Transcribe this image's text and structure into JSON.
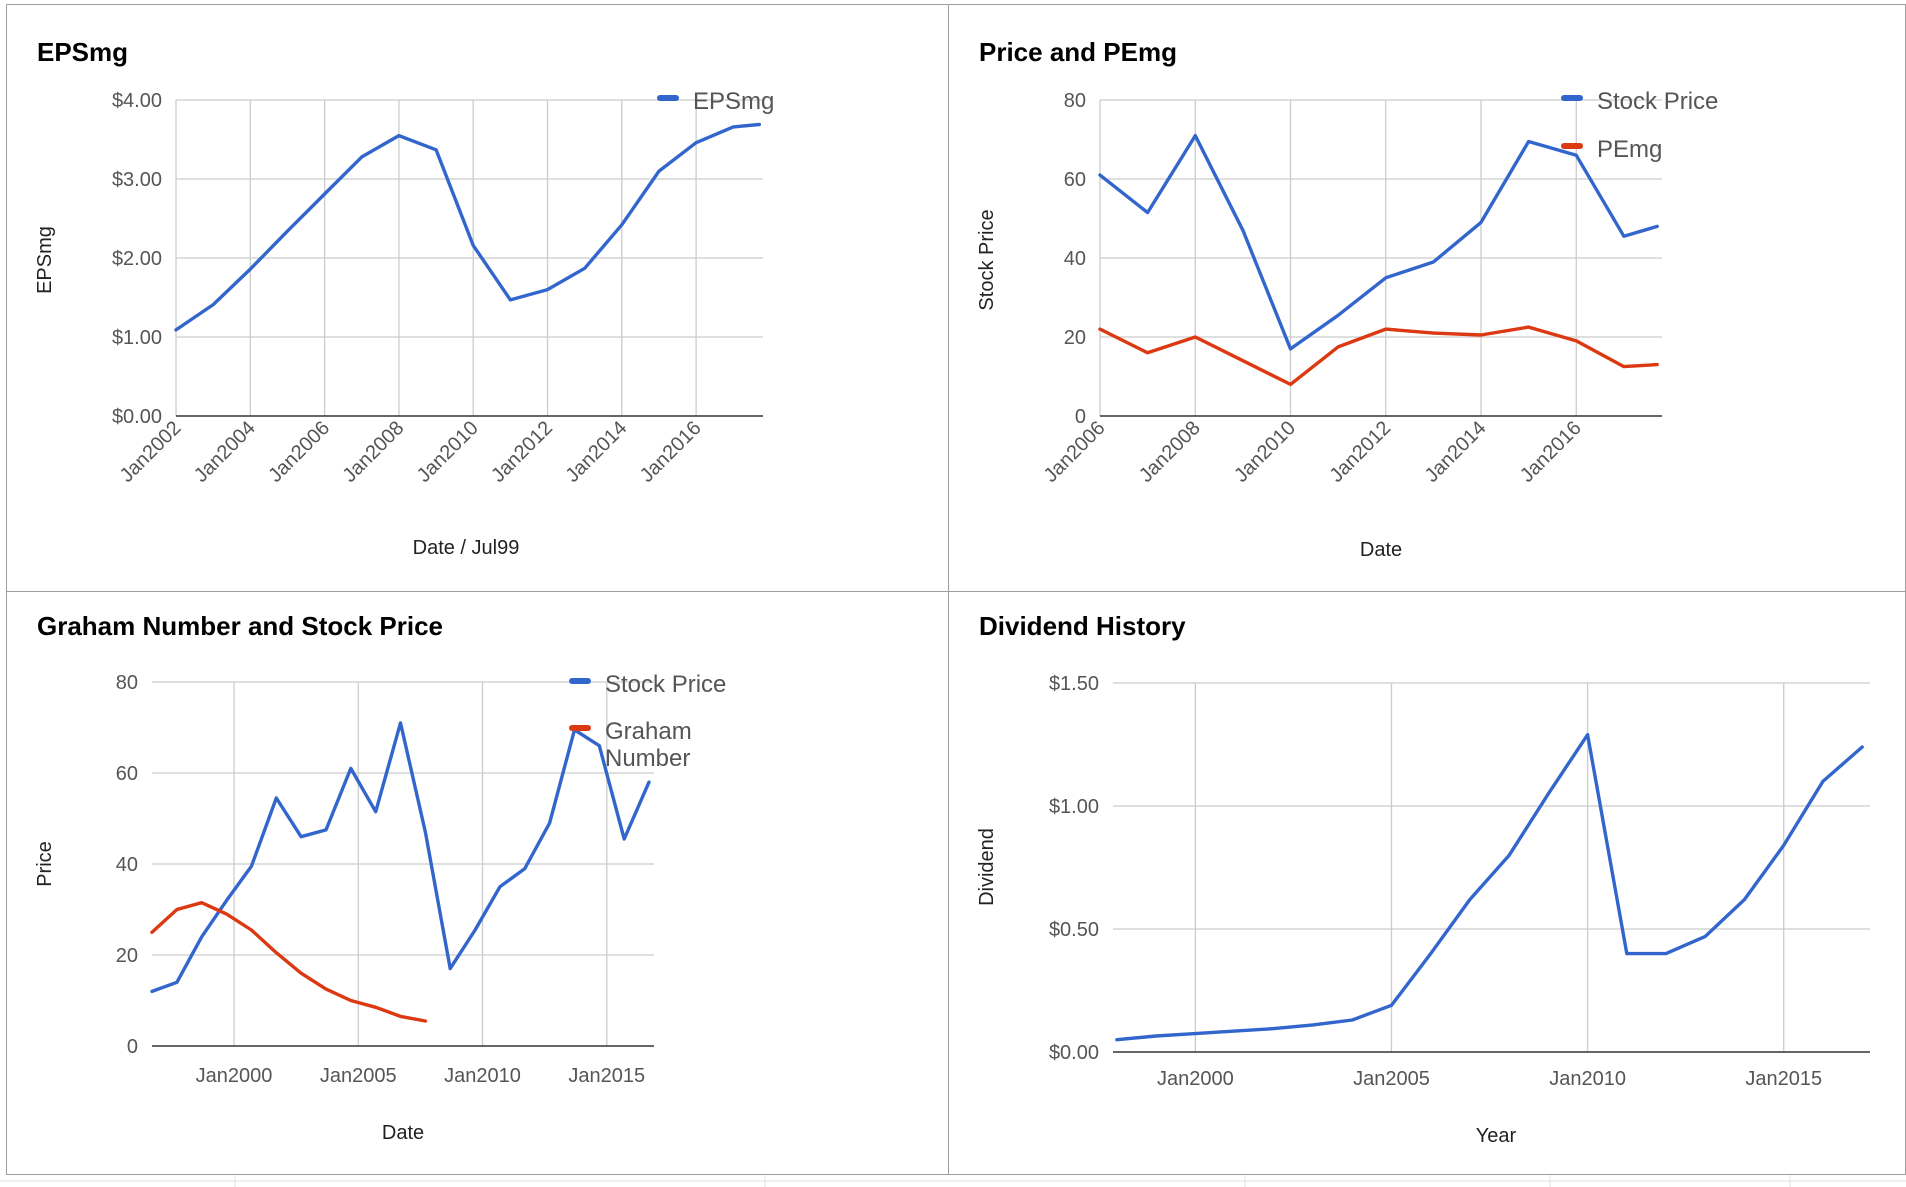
{
  "colors": {
    "blue": "#3366cc",
    "red": "#dc3912",
    "grid": "#cccccc",
    "axis": "#333333"
  },
  "chart_data": [
    {
      "type": "line",
      "title": "EPSmg",
      "xlabel": "Date / Jul99",
      "ylabel": "EPSmg",
      "x_tick_labels": [
        "Jan2002",
        "Jan2004",
        "Jan2006",
        "Jan2008",
        "Jan2010",
        "Jan2012",
        "Jan2014",
        "Jan2016"
      ],
      "y_tick_labels": [
        "$0.00",
        "$1.00",
        "$2.00",
        "$3.00",
        "$4.00"
      ],
      "ylim": [
        0,
        4
      ],
      "xlim": [
        2002,
        2017.8
      ],
      "grid": true,
      "legend_position": "right",
      "series": [
        {
          "name": "EPSmg",
          "color": "#3366cc",
          "x": [
            2002,
            2003,
            2004,
            2005,
            2006,
            2007,
            2008,
            2009,
            2010,
            2011,
            2012,
            2013,
            2014,
            2015,
            2016,
            2017,
            2017.7
          ],
          "y": [
            1.09,
            1.41,
            1.86,
            2.34,
            2.81,
            3.28,
            3.55,
            3.37,
            2.16,
            1.47,
            1.6,
            1.87,
            2.42,
            3.1,
            3.46,
            3.66,
            3.69
          ]
        }
      ]
    },
    {
      "type": "line",
      "title": "Price and PEmg",
      "xlabel": "Date",
      "ylabel": "Stock Price",
      "x_tick_labels": [
        "Jan2006",
        "Jan2008",
        "Jan2010",
        "Jan2012",
        "Jan2014",
        "Jan2016"
      ],
      "y_tick_labels": [
        "0",
        "20",
        "40",
        "60",
        "80"
      ],
      "ylim": [
        0,
        80
      ],
      "xlim": [
        2006,
        2017.8
      ],
      "grid": true,
      "legend_position": "right",
      "series": [
        {
          "name": "Stock Price",
          "color": "#3366cc",
          "x": [
            2006,
            2007,
            2008,
            2009,
            2010,
            2011,
            2012,
            2013,
            2014,
            2015,
            2016,
            2017,
            2017.7
          ],
          "y": [
            61,
            51.5,
            71,
            47,
            17,
            25.5,
            35,
            39,
            49,
            69.5,
            66,
            45.5,
            48
          ]
        },
        {
          "name": "PEmg",
          "color": "#dc3912",
          "x": [
            2006,
            2007,
            2008,
            2009,
            2010,
            2011,
            2012,
            2013,
            2014,
            2015,
            2016,
            2017,
            2017.7
          ],
          "y": [
            22,
            16,
            20,
            14,
            8,
            17.5,
            22,
            21,
            20.5,
            22.5,
            19,
            12.5,
            13
          ]
        }
      ]
    },
    {
      "type": "line",
      "title": "Graham Number and Stock Price",
      "xlabel": "Date",
      "ylabel": "Price",
      "x_tick_labels": [
        "Jan2000",
        "Jan2005",
        "Jan2010",
        "Jan2015"
      ],
      "y_tick_labels": [
        "0",
        "20",
        "40",
        "60",
        "80"
      ],
      "ylim": [
        0,
        80
      ],
      "xlim": [
        1996.7,
        2016.9
      ],
      "grid": true,
      "legend_position": "right",
      "series": [
        {
          "name": "Stock Price",
          "color": "#3366cc",
          "x": [
            1996.7,
            1997.7,
            1998.7,
            1999.7,
            2000.7,
            2001.7,
            2002.7,
            2003.7,
            2004.7,
            2005.7,
            2006.7,
            2007.7,
            2008.7,
            2009.7,
            2010.7,
            2011.7,
            2012.7,
            2013.7,
            2014.7,
            2015.7,
            2016.7
          ],
          "y": [
            12,
            14,
            24,
            32,
            39.5,
            54.5,
            46,
            47.5,
            61,
            51.5,
            71,
            47,
            17,
            25.5,
            35,
            39,
            49,
            69.5,
            66,
            45.5,
            58
          ]
        },
        {
          "name": "Graham Number",
          "color": "#dc3912",
          "x": [
            1996.7,
            1997.7,
            1998.7,
            1999.7,
            2000.7,
            2001.7,
            2002.7,
            2003.7,
            2004.7,
            2005.7,
            2006.7,
            2007.7
          ],
          "y": [
            25,
            30,
            31.5,
            29,
            25.5,
            20.5,
            16,
            12.5,
            10,
            8.5,
            6.5,
            5.5
          ]
        }
      ]
    },
    {
      "type": "line",
      "title": "Dividend History",
      "xlabel": "Year",
      "ylabel": "Dividend",
      "x_tick_labels": [
        "Jan2000",
        "Jan2005",
        "Jan2010",
        "Jan2015"
      ],
      "y_tick_labels": [
        "$0.00",
        "$0.50",
        "$1.00",
        "$1.50"
      ],
      "ylim": [
        0,
        1.5
      ],
      "xlim": [
        1997.9,
        2017.2
      ],
      "grid": true,
      "legend_position": "none",
      "series": [
        {
          "name": "",
          "color": "#3366cc",
          "x": [
            1998,
            1999,
            2000,
            2001,
            2002,
            2003,
            2004,
            2005,
            2006,
            2007,
            2008,
            2009,
            2010,
            2011,
            2012,
            2013,
            2014,
            2015,
            2016,
            2017
          ],
          "y": [
            0.05,
            0.065,
            0.075,
            0.085,
            0.095,
            0.11,
            0.13,
            0.19,
            0.4,
            0.62,
            0.8,
            1.05,
            1.29,
            0.4,
            0.4,
            0.47,
            0.62,
            0.84,
            1.1,
            1.24
          ]
        }
      ]
    }
  ]
}
